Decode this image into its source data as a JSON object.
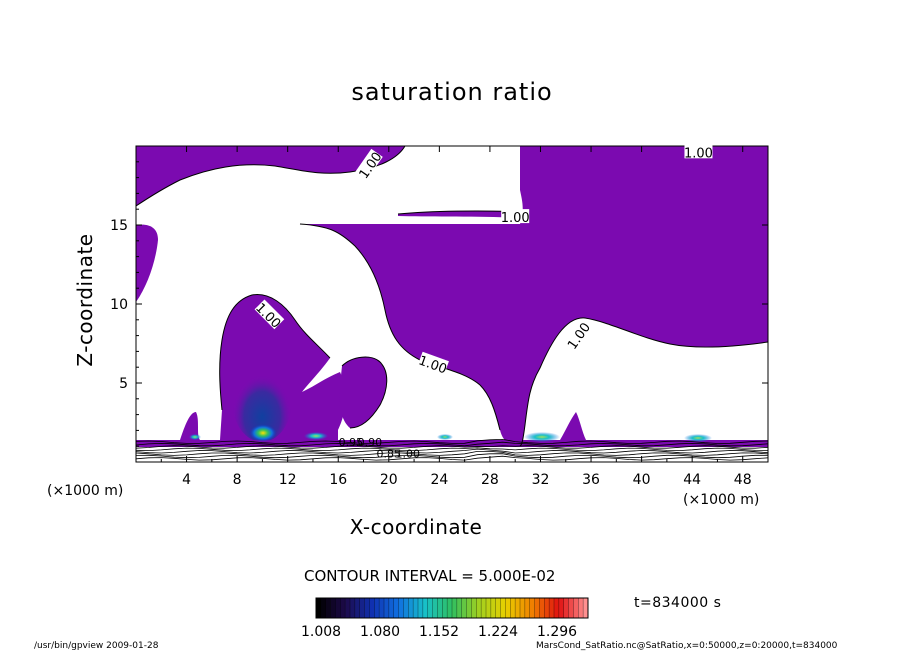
{
  "chart_data": {
    "type": "heatmap",
    "title": "saturation ratio",
    "xlabel": "X-coordinate",
    "ylabel": "Z-coordinate",
    "x_unit": "(×1000 m)",
    "xlim": [
      0,
      50
    ],
    "ylim": [
      0,
      20
    ],
    "x_ticks": [
      4,
      8,
      12,
      16,
      20,
      24,
      28,
      32,
      36,
      40,
      44,
      48
    ],
    "y_ticks": [
      5,
      10,
      15
    ],
    "contour_interval": "CONTOUR INTERVAL = 5.000E-02",
    "contour_labels": [
      "1.00",
      "1.00",
      "1.00",
      "1.00",
      "1.00",
      "1.00"
    ],
    "near_surface_labels": [
      "0.95",
      "0.90",
      "0.85",
      "1.00"
    ],
    "colorbar": {
      "ticks": [
        "1.008",
        "1.080",
        "1.152",
        "1.224",
        "1.296"
      ],
      "min": 1.008,
      "max": 1.296
    },
    "time": "t=834000 s",
    "fill_color": "#7b0ab0",
    "colormap": [
      "#000000",
      "#1d0a4a",
      "#1030b0",
      "#1070e0",
      "#18c0c8",
      "#30c060",
      "#a0d020",
      "#e8d000",
      "#f08000",
      "#e01010",
      "#ff9090"
    ],
    "saturated_region_note": "",
    "hotspots": [
      {
        "x": 10.0,
        "z": 1.8,
        "value": 1.25
      },
      {
        "x": 14.0,
        "z": 1.6,
        "value": 1.1
      },
      {
        "x": 32.0,
        "z": 1.6,
        "value": 1.13
      },
      {
        "x": 44.5,
        "z": 1.5,
        "value": 1.08
      },
      {
        "x": 8.5,
        "z": 1.7,
        "value": 1.06
      },
      {
        "x": 4.0,
        "z": 1.6,
        "value": 1.05
      }
    ]
  },
  "footer": {
    "left": "/usr/bin/gpview  2009-01-28",
    "right": "MarsCond_SatRatio.nc@SatRatio,x=0:50000,z=0:20000,t=834000"
  }
}
